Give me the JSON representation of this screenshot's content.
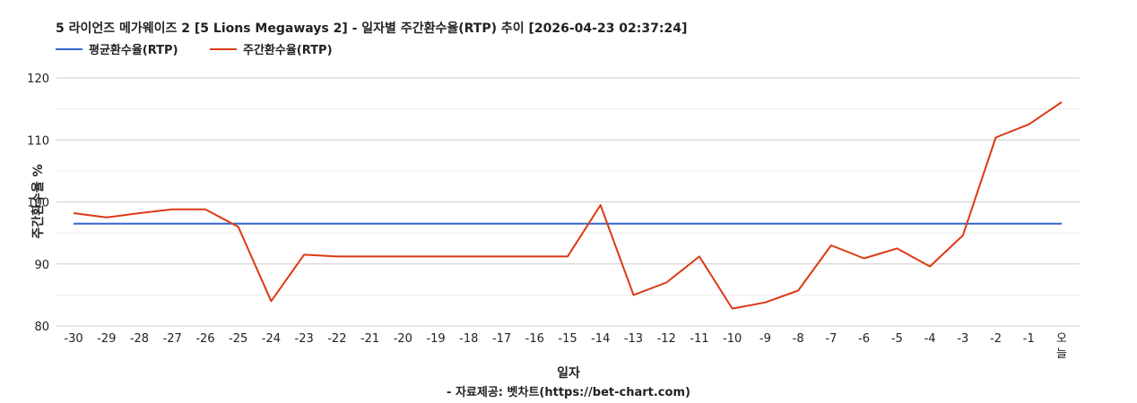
{
  "chart_data": {
    "type": "line",
    "title": "5 라이언즈 메가웨이즈 2 [5 Lions Megaways 2] - 일자별 주간환수율(RTP) 추이 [2026-04-23 02:37:24]",
    "xlabel": "일자",
    "ylabel": "주간환수율 %",
    "credit": "- 자료제공: 벳차트(https://bet-chart.com)",
    "ylim": [
      80,
      120
    ],
    "yticks": [
      "80",
      "90",
      "100",
      "110",
      "120"
    ],
    "grid": true,
    "legend_position": "top-left",
    "categories": [
      "-30",
      "-29",
      "-28",
      "-27",
      "-26",
      "-25",
      "-24",
      "-23",
      "-22",
      "-21",
      "-20",
      "-19",
      "-18",
      "-17",
      "-16",
      "-15",
      "-14",
      "-13",
      "-12",
      "-11",
      "-10",
      "-9",
      "-8",
      "-7",
      "-6",
      "-5",
      "-4",
      "-3",
      "-2",
      "-1",
      "오늘"
    ],
    "series": [
      {
        "name": "평균환수율(RTP)",
        "color": "#3366cc",
        "values": [
          96.5,
          96.5,
          96.5,
          96.5,
          96.5,
          96.5,
          96.5,
          96.5,
          96.5,
          96.5,
          96.5,
          96.5,
          96.5,
          96.5,
          96.5,
          96.5,
          96.5,
          96.5,
          96.5,
          96.5,
          96.5,
          96.5,
          96.5,
          96.5,
          96.5,
          96.5,
          96.5,
          96.5,
          96.5,
          96.5,
          96.5
        ]
      },
      {
        "name": "주간환수율(RTP)",
        "color": "#dc3912",
        "values": [
          98.2,
          97.5,
          98.2,
          98.8,
          98.8,
          96.0,
          84.0,
          91.5,
          91.2,
          91.2,
          91.2,
          91.2,
          91.2,
          91.2,
          91.2,
          91.2,
          99.5,
          85.0,
          87.0,
          91.2,
          82.8,
          83.8,
          85.7,
          93.0,
          90.9,
          92.5,
          89.6,
          94.6,
          110.4,
          112.5,
          116.1
        ]
      }
    ]
  }
}
